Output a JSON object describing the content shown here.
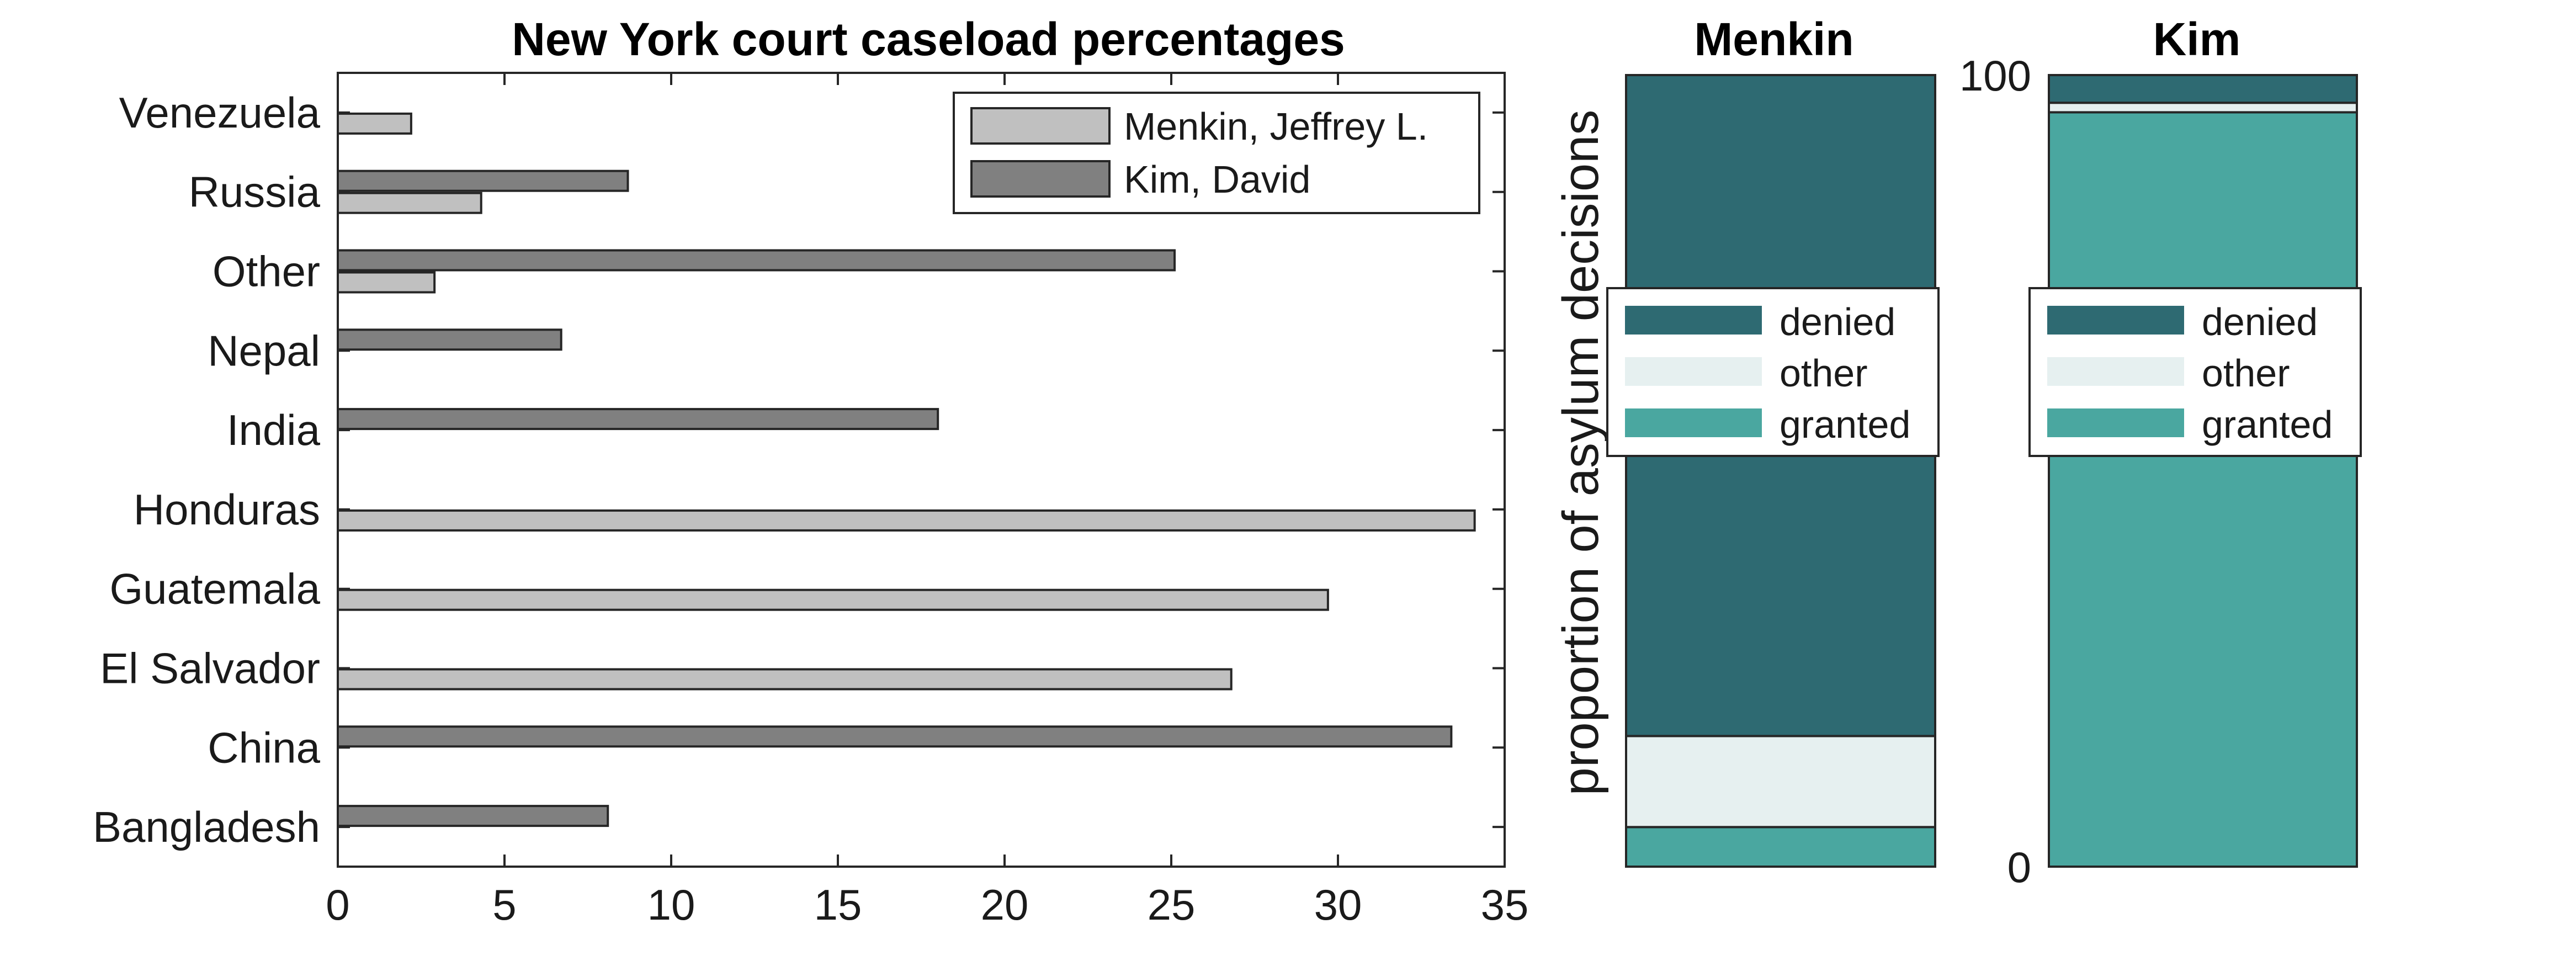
{
  "chart_data": [
    {
      "type": "bar",
      "orientation": "horizontal",
      "title": "New York court caseload percentages",
      "xlabel": "",
      "ylabel": "",
      "categories": [
        "Bangladesh",
        "China",
        "El Salvador",
        "Guatemala",
        "Honduras",
        "India",
        "Nepal",
        "Other",
        "Russia",
        "Venezuela"
      ],
      "series": [
        {
          "name": "Menkin, Jeffrey L.",
          "color": "#c0c0c0",
          "values": [
            0,
            0,
            26.8,
            29.7,
            34.1,
            0,
            0,
            2.9,
            4.3,
            2.2
          ]
        },
        {
          "name": "Kim, David",
          "color": "#808080",
          "values": [
            8.1,
            33.4,
            0,
            0,
            0,
            18.0,
            6.7,
            25.1,
            8.7,
            0
          ]
        }
      ],
      "xlim": [
        0,
        35
      ],
      "xticks": [
        "0",
        "5",
        "10",
        "15",
        "20",
        "25",
        "30",
        "35"
      ],
      "legend_position": "top-right",
      "grid": false
    },
    {
      "type": "bar",
      "stacked": true,
      "title": "Menkin",
      "ylabel": "proportion of asylum decisions",
      "series": [
        {
          "name": "granted",
          "value": 5,
          "color": "#4aa7a0"
        },
        {
          "name": "other",
          "value": 11.5,
          "color": "#e6f0f0"
        },
        {
          "name": "denied",
          "value": 83.5,
          "color": "#2e6a72"
        }
      ],
      "ylim": [
        0,
        100
      ],
      "legend_position": "center",
      "legend_order": [
        "denied",
        "other",
        "granted"
      ]
    },
    {
      "type": "bar",
      "stacked": true,
      "title": "Kim",
      "series": [
        {
          "name": "granted",
          "value": 95.3,
          "color": "#4aa7a0"
        },
        {
          "name": "other",
          "value": 1.2,
          "color": "#e6f0f0"
        },
        {
          "name": "denied",
          "value": 3.5,
          "color": "#2e6a72"
        }
      ],
      "ylim": [
        0,
        100
      ],
      "yticks": [
        "0",
        "100"
      ],
      "legend_position": "center",
      "legend_order": [
        "denied",
        "other",
        "granted"
      ]
    }
  ]
}
